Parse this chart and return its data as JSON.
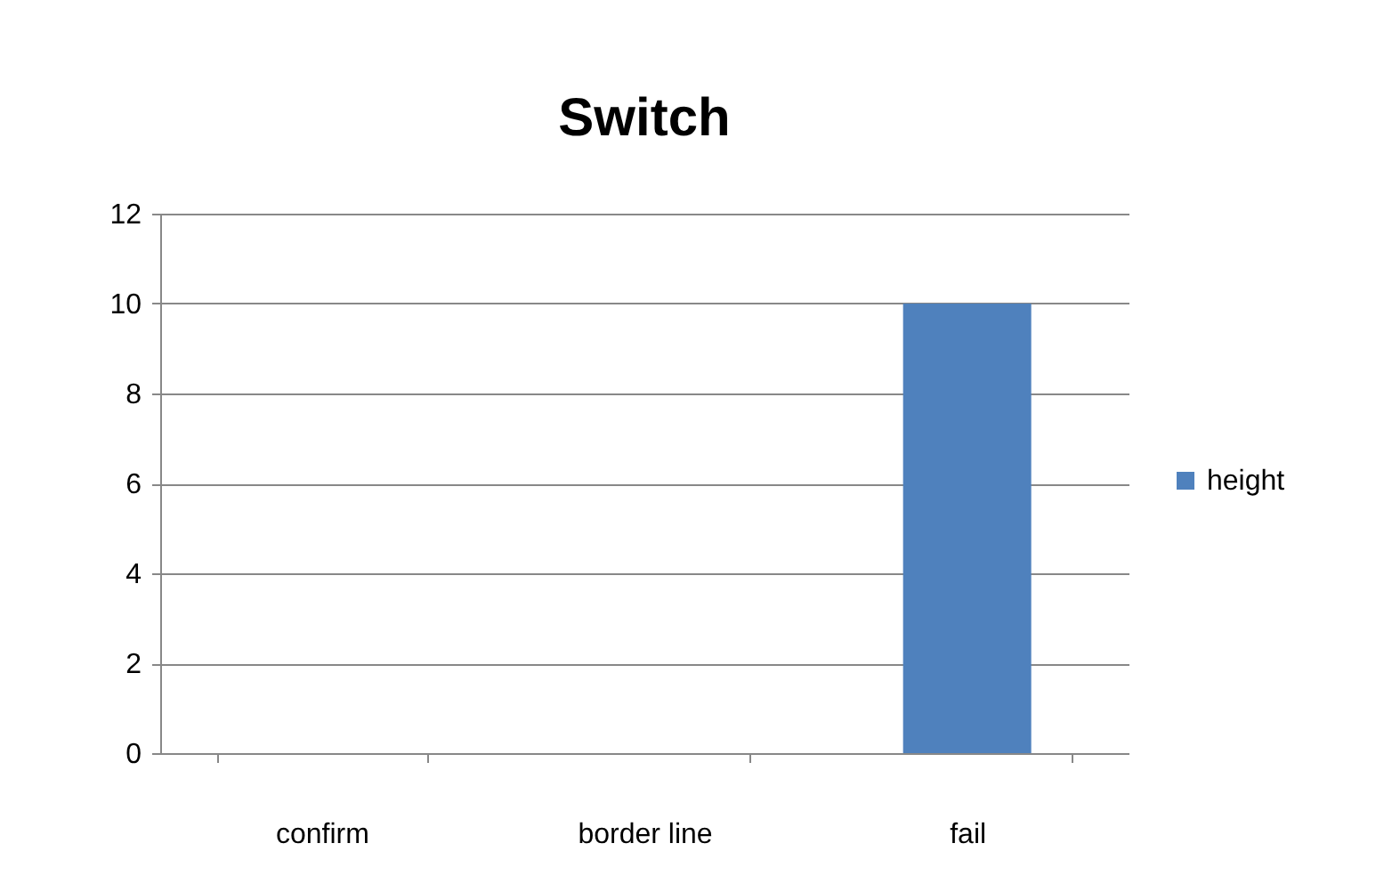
{
  "chart_data": {
    "type": "bar",
    "title": "Switch",
    "categories": [
      "confirm",
      "border line",
      "fail"
    ],
    "series": [
      {
        "name": "height",
        "color": "#4f81bd",
        "values": [
          0,
          0,
          10
        ]
      }
    ],
    "ylim": [
      0,
      12
    ],
    "yticks": [
      0,
      2,
      4,
      6,
      8,
      10,
      12
    ],
    "grid": "y",
    "legend": "right"
  }
}
